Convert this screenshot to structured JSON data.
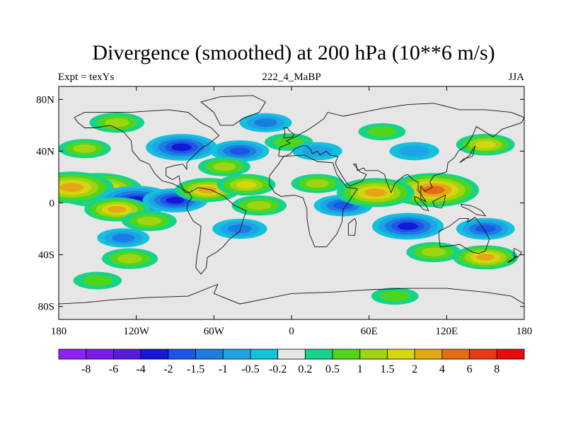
{
  "title": "Divergence (smoothed) at 200 hPa (10**6 m/s)",
  "left_label": "Expt = texYs",
  "center_label": "222_4_MaBP",
  "right_label": "JJA",
  "chart_data": {
    "type": "heatmap",
    "map_projection": "cylindrical equidistant",
    "lon_range": [
      -180,
      180
    ],
    "lat_range": [
      -90,
      90
    ],
    "x_ticks": [
      {
        "value": -180,
        "label": "180"
      },
      {
        "value": -120,
        "label": "120W"
      },
      {
        "value": -60,
        "label": "60W"
      },
      {
        "value": 0,
        "label": "0"
      },
      {
        "value": 60,
        "label": "60E"
      },
      {
        "value": 120,
        "label": "120E"
      },
      {
        "value": 180,
        "label": "180"
      }
    ],
    "y_ticks": [
      {
        "value": 80,
        "label": "80N"
      },
      {
        "value": 40,
        "label": "40N"
      },
      {
        "value": 0,
        "label": "0"
      },
      {
        "value": -40,
        "label": "40S"
      },
      {
        "value": -80,
        "label": "80S"
      }
    ],
    "colorbar": {
      "labels": [
        "-8",
        "-6",
        "-4",
        "-2",
        "-1.5",
        "-1",
        "-0.5",
        "-0.2",
        "0.2",
        "0.5",
        "1",
        "1.5",
        "2",
        "4",
        "6",
        "8"
      ],
      "colors": [
        "#8f22f2",
        "#7a1ee6",
        "#5a1ad9",
        "#1717d6",
        "#1d55e6",
        "#1a7ee0",
        "#1ea4e6",
        "#14c1dc",
        "#e6e6e6",
        "#17d38a",
        "#4fd61b",
        "#9ed414",
        "#d6d60f",
        "#e6a716",
        "#e66c14",
        "#e63a12",
        "#e60c0c"
      ]
    },
    "neutral_color": "#e6e6e6",
    "features": [
      {
        "lon": -135,
        "lat": 62,
        "value": 1.2
      },
      {
        "lon": -160,
        "lat": 42,
        "value": 1.0
      },
      {
        "lon": -150,
        "lat": 10,
        "value": 4.0
      },
      {
        "lon": -170,
        "lat": 12,
        "value": 3.5
      },
      {
        "lon": -120,
        "lat": 2,
        "value": -3.0
      },
      {
        "lon": -90,
        "lat": 2,
        "value": -2.0
      },
      {
        "lon": -135,
        "lat": -5,
        "value": 2.0
      },
      {
        "lon": -110,
        "lat": -14,
        "value": 1.2
      },
      {
        "lon": -130,
        "lat": -27,
        "value": -1.0
      },
      {
        "lon": -125,
        "lat": -43,
        "value": 1.3
      },
      {
        "lon": -150,
        "lat": -60,
        "value": 0.7
      },
      {
        "lon": -85,
        "lat": 43,
        "value": -2.5
      },
      {
        "lon": -40,
        "lat": 40,
        "value": -1.5
      },
      {
        "lon": -52,
        "lat": 28,
        "value": 1.0
      },
      {
        "lon": -20,
        "lat": 62,
        "value": -1.0
      },
      {
        "lon": -2,
        "lat": 47,
        "value": 0.7
      },
      {
        "lon": -65,
        "lat": 10,
        "value": 2.0
      },
      {
        "lon": -35,
        "lat": 14,
        "value": 1.5
      },
      {
        "lon": -25,
        "lat": -2,
        "value": 1.2
      },
      {
        "lon": -40,
        "lat": -20,
        "value": -1.2
      },
      {
        "lon": 20,
        "lat": 15,
        "value": 1.0
      },
      {
        "lon": 40,
        "lat": -2,
        "value": -1.5
      },
      {
        "lon": 20,
        "lat": 40,
        "value": -0.8
      },
      {
        "lon": 70,
        "lat": 55,
        "value": 0.6
      },
      {
        "lon": 95,
        "lat": 40,
        "value": -0.8
      },
      {
        "lon": 150,
        "lat": 45,
        "value": 1.5
      },
      {
        "lon": 110,
        "lat": 10,
        "value": 4.0
      },
      {
        "lon": 65,
        "lat": 8,
        "value": 3.0
      },
      {
        "lon": 90,
        "lat": -18,
        "value": -2.5
      },
      {
        "lon": 150,
        "lat": -20,
        "value": -1.5
      },
      {
        "lon": 110,
        "lat": -38,
        "value": 1.2
      },
      {
        "lon": 150,
        "lat": -42,
        "value": 2.0
      },
      {
        "lon": 80,
        "lat": -72,
        "value": 0.6
      }
    ],
    "grid": false,
    "legend_placement": "bottom"
  }
}
